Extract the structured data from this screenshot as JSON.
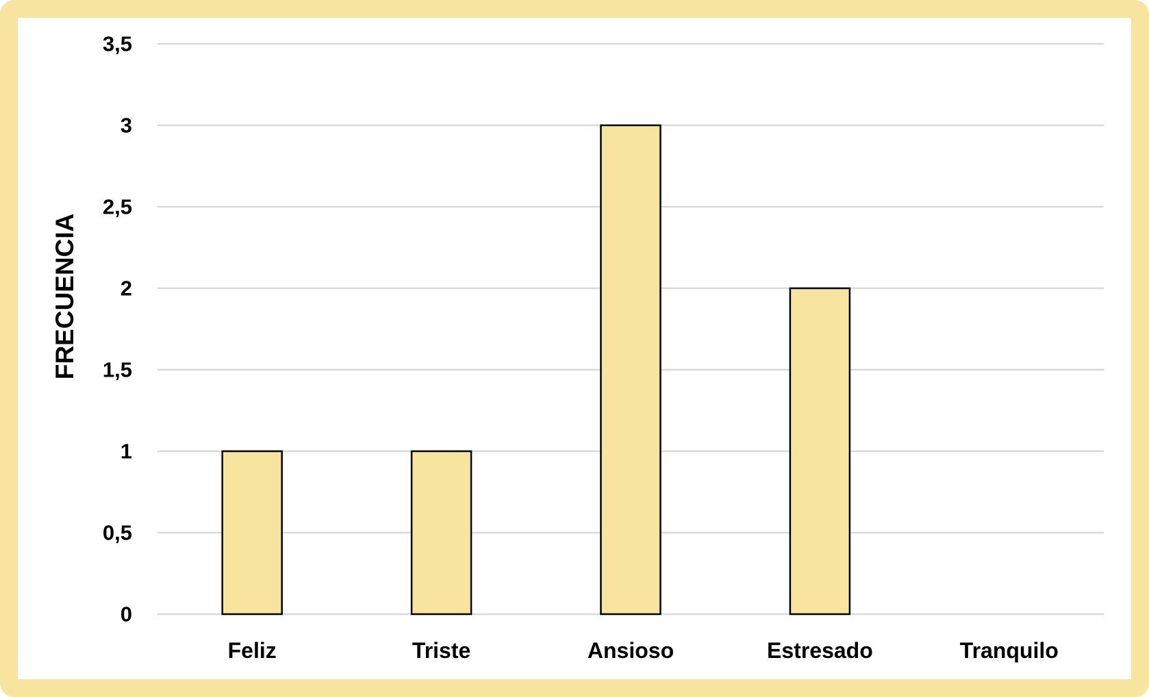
{
  "colors": {
    "frame": "#F7E49E",
    "plot_background": "#FFFFFF",
    "bar_fill": "#F7E49E",
    "bar_stroke": "#000000",
    "gridline": "#D9D9D9"
  },
  "chart_data": {
    "type": "bar",
    "title": "",
    "xlabel": "",
    "ylabel": "FRECUENCIA",
    "categories": [
      "Feliz",
      "Triste",
      "Ansioso",
      "Estresado",
      "Tranquilo"
    ],
    "values": [
      1,
      1,
      3,
      2,
      0
    ],
    "ylim": [
      0,
      3.5
    ],
    "y_ticks": [
      0,
      0.5,
      1,
      1.5,
      2,
      2.5,
      3,
      3.5
    ],
    "y_tick_labels": [
      "0",
      "0,5",
      "1",
      "1,5",
      "2",
      "2,5",
      "3",
      "3,5"
    ],
    "grid": true,
    "legend": "none"
  }
}
